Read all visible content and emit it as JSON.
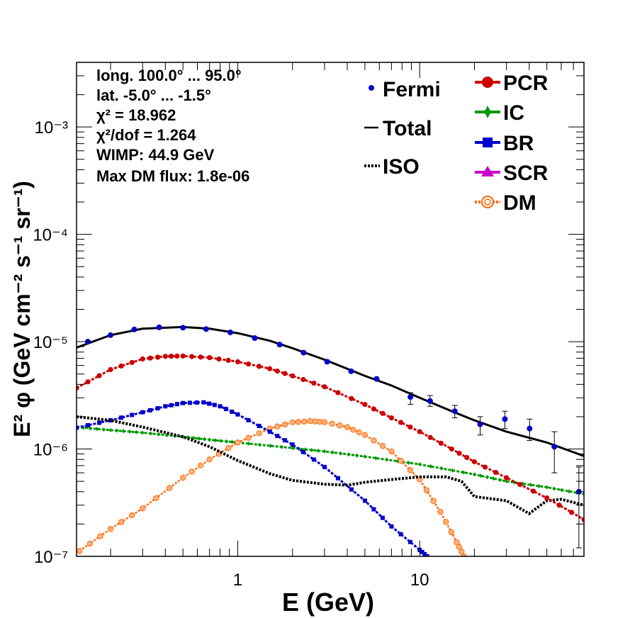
{
  "chart_data": {
    "type": "line",
    "xlabel": "E (GeV)",
    "ylabel": "E² φ (GeV cm⁻² s⁻¹ sr⁻¹)",
    "x_scale": "log",
    "y_scale": "log",
    "xlim": [
      0.13,
      80
    ],
    "ylim": [
      1e-07,
      0.004
    ],
    "x_tick_labels": [
      "1",
      "10"
    ],
    "y_tick_labels": [
      "10⁻⁷",
      "10⁻⁶",
      "10⁻⁵",
      "10⁻⁴",
      "10⁻³"
    ],
    "info_lines": [
      "long. 100.0° ... 95.0°",
      "lat. -5.0° ... -1.5°",
      "χ² = 18.962",
      "χ²/dof = 1.264",
      "WIMP: 44.9 GeV",
      "Max DM flux: 1.8e-06"
    ],
    "legend": [
      {
        "label": "Fermi",
        "color": "#0000cc",
        "style": "point"
      },
      {
        "label": "Total",
        "color": "#000000",
        "style": "solid"
      },
      {
        "label": "ISO",
        "color": "#000000",
        "style": "dotted"
      },
      {
        "label": "PCR",
        "color": "#cc0000",
        "style": "marker-circle"
      },
      {
        "label": "IC",
        "color": "#009900",
        "style": "marker-star"
      },
      {
        "label": "BR",
        "color": "#0000cc",
        "style": "marker-square"
      },
      {
        "label": "SCR",
        "color": "#cc00cc",
        "style": "marker-triangle"
      },
      {
        "label": "DM",
        "color": "#ff6600",
        "style": "marker-open-circle"
      }
    ],
    "series": [
      {
        "name": "Fermi",
        "color": "#0000cc",
        "x": [
          0.15,
          0.2,
          0.27,
          0.37,
          0.5,
          0.67,
          0.91,
          1.24,
          1.7,
          2.3,
          3.1,
          4.2,
          5.8,
          8.9,
          11.4,
          15.6,
          21.5,
          29.4,
          40.2,
          55.0,
          75.0
        ],
        "y": [
          1e-05,
          1.15e-05,
          1.3e-05,
          1.36e-05,
          1.35e-05,
          1.31e-05,
          1.22e-05,
          1.08e-05,
          9.4e-06,
          7.9e-06,
          6.5e-06,
          5.3e-06,
          4.5e-06,
          3.05e-06,
          2.8e-06,
          2.25e-06,
          1.7e-06,
          1.9e-06,
          1.55e-06,
          1.05e-06,
          4e-07
        ],
        "yerr_lo": [
          0,
          0,
          0,
          0,
          0,
          0,
          0,
          0,
          0,
          0,
          0,
          0,
          0,
          2.6e-06,
          2.5e-06,
          1.95e-06,
          1.35e-06,
          1.55e-06,
          1.2e-06,
          6e-07,
          1.2e-07
        ],
        "yerr_hi": [
          0,
          0,
          0,
          0,
          0,
          0,
          0,
          0,
          0,
          0,
          0,
          0,
          0,
          3.35e-06,
          3.15e-06,
          2.55e-06,
          2e-06,
          2.25e-06,
          1.9e-06,
          1.45e-06,
          6.8e-07
        ]
      },
      {
        "name": "Total",
        "color": "#000000",
        "x": [
          0.13,
          0.2,
          0.3,
          0.5,
          0.7,
          1.0,
          1.5,
          2.0,
          3.0,
          5.0,
          7.0,
          10,
          15,
          20,
          30,
          50,
          80
        ],
        "y": [
          8.8e-06,
          1.15e-05,
          1.32e-05,
          1.37e-05,
          1.32e-05,
          1.2e-05,
          1.02e-05,
          8.7e-06,
          6.8e-06,
          4.8e-06,
          3.9e-06,
          3e-06,
          2.25e-06,
          1.85e-06,
          1.45e-06,
          1.15e-06,
          8.6e-07
        ]
      },
      {
        "name": "ISO",
        "color": "#000000",
        "x": [
          0.13,
          0.2,
          0.3,
          0.5,
          0.7,
          1.0,
          1.5,
          2.0,
          3.0,
          4.0,
          5.0,
          7.0,
          10,
          14,
          17,
          20,
          30,
          40,
          50,
          60,
          80
        ],
        "y": [
          2e-06,
          1.85e-06,
          1.6e-06,
          1.3e-06,
          1.05e-06,
          7.8e-07,
          5.9e-07,
          5.1e-07,
          4.7e-07,
          4.6e-07,
          4.9e-07,
          5.2e-07,
          5.5e-07,
          5.5e-07,
          5e-07,
          3.6e-07,
          3.3e-07,
          2.5e-07,
          3.3e-07,
          3.4e-07,
          3e-07
        ]
      },
      {
        "name": "PCR",
        "color": "#cc0000",
        "x": [
          0.13,
          0.2,
          0.3,
          0.4,
          0.5,
          0.7,
          1.0,
          1.5,
          2.0,
          3.0,
          5.0,
          7.0,
          10,
          15,
          20,
          30,
          50,
          80
        ],
        "y": [
          3.7e-06,
          5.5e-06,
          6.9e-06,
          7.3e-06,
          7.35e-06,
          7.1e-06,
          6.5e-06,
          5.6e-06,
          4.8e-06,
          3.8e-06,
          2.6e-06,
          1.95e-06,
          1.45e-06,
          1e-06,
          7.6e-07,
          5.4e-07,
          3.5e-07,
          2.2e-07
        ]
      },
      {
        "name": "IC",
        "color": "#009900",
        "x": [
          0.13,
          0.2,
          0.3,
          0.5,
          0.7,
          1.0,
          2.0,
          3.0,
          5.0,
          10,
          20,
          30,
          50,
          80
        ],
        "y": [
          1.6e-06,
          1.5e-06,
          1.42e-06,
          1.3e-06,
          1.22e-06,
          1.15e-06,
          1.02e-06,
          9.5e-07,
          8.5e-07,
          7.2e-07,
          5.8e-07,
          5e-07,
          4.4e-07,
          3.8e-07
        ]
      },
      {
        "name": "BR",
        "color": "#0000cc",
        "x": [
          0.13,
          0.2,
          0.3,
          0.4,
          0.5,
          0.65,
          0.8,
          1.0,
          1.5,
          2.0,
          3.0,
          5.0,
          7.0,
          10,
          11
        ],
        "y": [
          1.58e-06,
          1.85e-06,
          2.2e-06,
          2.5e-06,
          2.68e-06,
          2.72e-06,
          2.5e-06,
          2.1e-06,
          1.45e-06,
          1.1e-06,
          6.8e-07,
          3.3e-07,
          1.9e-07,
          1.15e-07,
          1e-07
        ]
      },
      {
        "name": "DM",
        "color": "#ff6600",
        "x": [
          0.135,
          0.2,
          0.3,
          0.5,
          0.7,
          1.0,
          1.5,
          2.0,
          2.5,
          3.0,
          4.0,
          5.0,
          7.0,
          10,
          13,
          16,
          17.5
        ],
        "y": [
          1.12e-07,
          1.8e-07,
          2.8e-07,
          5.4e-07,
          8e-07,
          1.15e-06,
          1.55e-06,
          1.77e-06,
          1.82e-06,
          1.78e-06,
          1.6e-06,
          1.35e-06,
          9.5e-07,
          5.2e-07,
          2.6e-07,
          1.35e-07,
          1e-07
        ]
      }
    ]
  }
}
